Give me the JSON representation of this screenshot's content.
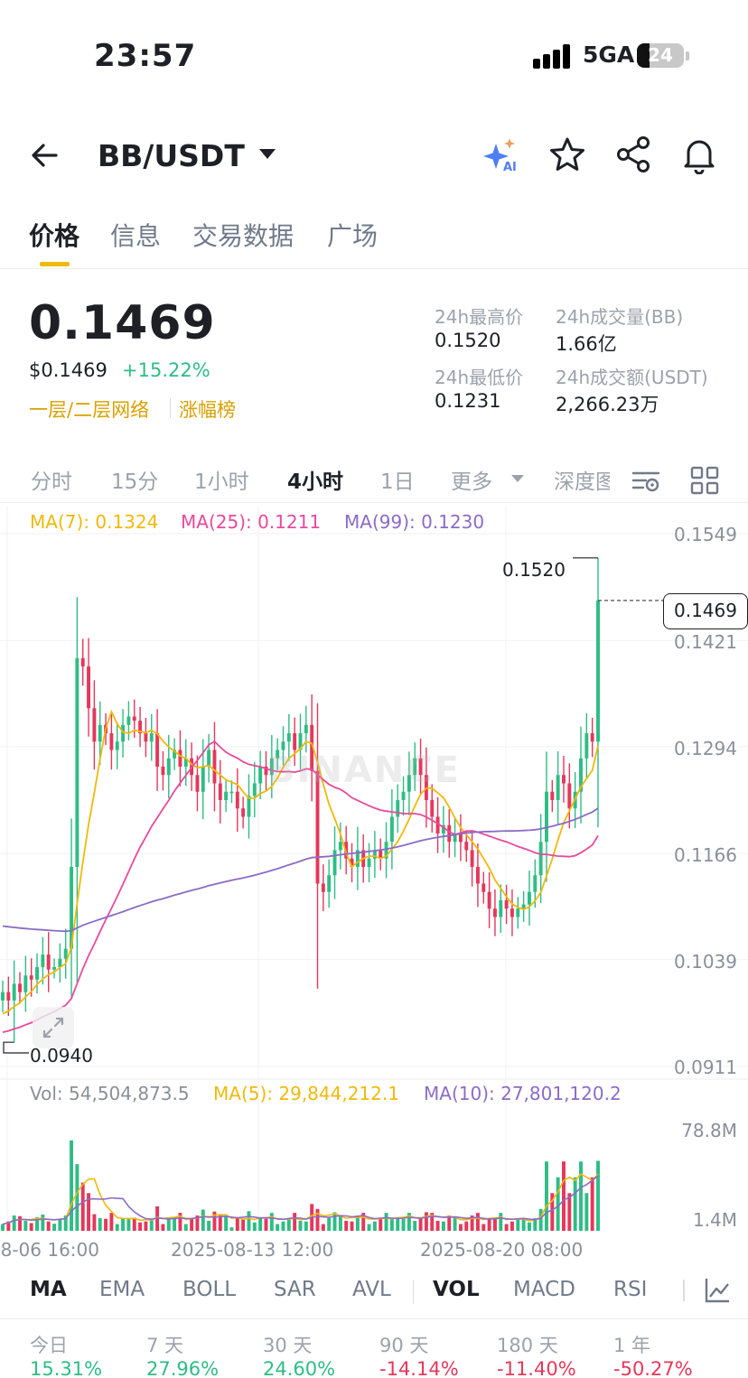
{
  "status_bar": {
    "time": "23:57",
    "network": "5GA",
    "battery": "24"
  },
  "header": {
    "pair": "BB/USDT"
  },
  "main_tabs": [
    "价格",
    "信息",
    "交易数据",
    "广场"
  ],
  "price": {
    "last": "0.1469",
    "fiat": "$0.1469",
    "change": "+15.22%",
    "tags": [
      "一层/二层网络",
      "涨幅榜"
    ]
  },
  "stats": {
    "high_label": "24h最高价",
    "high_value": "0.1520",
    "low_label": "24h最低价",
    "low_value": "0.1231",
    "vol_base_label": "24h成交量(BB)",
    "vol_base_value": "1.66亿",
    "vol_quote_label": "24h成交额(USDT)",
    "vol_quote_value": "2,266.23万"
  },
  "intervals": [
    "分时",
    "15分",
    "1小时",
    "4小时",
    "1日",
    "更多",
    "深度图"
  ],
  "ma_legend": {
    "ma7": "MA(7): 0.1324",
    "ma25": "MA(25): 0.1211",
    "ma99": "MA(99): 0.1230"
  },
  "price_axis": [
    "0.1549",
    "0.1421",
    "0.1294",
    "0.1166",
    "0.1039",
    "0.0911"
  ],
  "chart_marks": {
    "high": "0.1520",
    "low": "0.0940",
    "current": "0.1469"
  },
  "watermark": "BINANCE",
  "vol_legend": {
    "vol": "Vol: 54,504,873.5",
    "ma5": "MA(5): 29,844,212.1",
    "ma10": "MA(10): 27,801,120.2"
  },
  "vol_axis": [
    "78.8M",
    "1.4M"
  ],
  "x_axis": [
    "8-06 16:00",
    "2025-08-13 12:00",
    "2025-08-20 08:00"
  ],
  "indicators": [
    "MA",
    "EMA",
    "BOLL",
    "SAR",
    "AVL",
    "VOL",
    "MACD",
    "RSI"
  ],
  "performance": [
    {
      "label": "今日",
      "value": "15.31%"
    },
    {
      "label": "7 天",
      "value": "27.96%"
    },
    {
      "label": "30 天",
      "value": "24.60%"
    },
    {
      "label": "90 天",
      "value": "-14.14%"
    },
    {
      "label": "180 天",
      "value": "-11.40%"
    },
    {
      "label": "1 年",
      "value": "-50.27%"
    }
  ],
  "colors": {
    "up": "#2ebd85",
    "down": "#e4385b",
    "accent": "#f0b90b",
    "ma7": "#f0b90b",
    "ma25": "#e84a9b",
    "ma99": "#8c6bc6"
  },
  "chart_data": {
    "type": "candlestick",
    "pair": "BB/USDT",
    "interval": "4小时",
    "ylim": [
      0.0911,
      0.1549
    ],
    "y_ticks": [
      0.1549,
      0.1421,
      0.1294,
      0.1166,
      0.1039,
      0.0911
    ],
    "x_ticks": [
      "8-06 16:00",
      "2025-08-13 12:00",
      "2025-08-20 08:00"
    ],
    "high_mark": 0.152,
    "low_mark": 0.094,
    "current": 0.1469,
    "ma": {
      "MA7": 0.1324,
      "MA25": 0.1211,
      "MA99": 0.123
    },
    "close_path": [
      0.1,
      0.099,
      0.101,
      0.1,
      0.102,
      0.1015,
      0.103,
      0.1045,
      0.1027,
      0.103,
      0.104,
      0.1052,
      0.115,
      0.14,
      0.139,
      0.134,
      0.13,
      0.132,
      0.131,
      0.129,
      0.13,
      0.132,
      0.133,
      0.1325,
      0.131,
      0.13,
      0.131,
      0.127,
      0.126,
      0.128,
      0.129,
      0.127,
      0.128,
      0.126,
      0.124,
      0.127,
      0.129,
      0.125,
      0.123,
      0.124,
      0.124,
      0.122,
      0.121,
      0.1235,
      0.125,
      0.127,
      0.126,
      0.128,
      0.129,
      0.13,
      0.131,
      0.129,
      0.131,
      0.132,
      0.1265,
      0.113,
      0.112,
      0.114,
      0.117,
      0.118,
      0.116,
      0.115,
      0.117,
      0.115,
      0.116,
      0.117,
      0.116,
      0.118,
      0.121,
      0.123,
      0.124,
      0.126,
      0.128,
      0.126,
      0.123,
      0.121,
      0.119,
      0.12,
      0.118,
      0.119,
      0.118,
      0.117,
      0.115,
      0.113,
      0.112,
      0.11,
      0.109,
      0.111,
      0.11,
      0.109,
      0.11,
      0.1105,
      0.112,
      0.114,
      0.118,
      0.124,
      0.123,
      0.126,
      0.125,
      0.122,
      0.124,
      0.128,
      0.131,
      0.13,
      0.1469
    ],
    "vol_ylim": [
      1.4,
      78.8
    ],
    "volume_unit": "M"
  }
}
